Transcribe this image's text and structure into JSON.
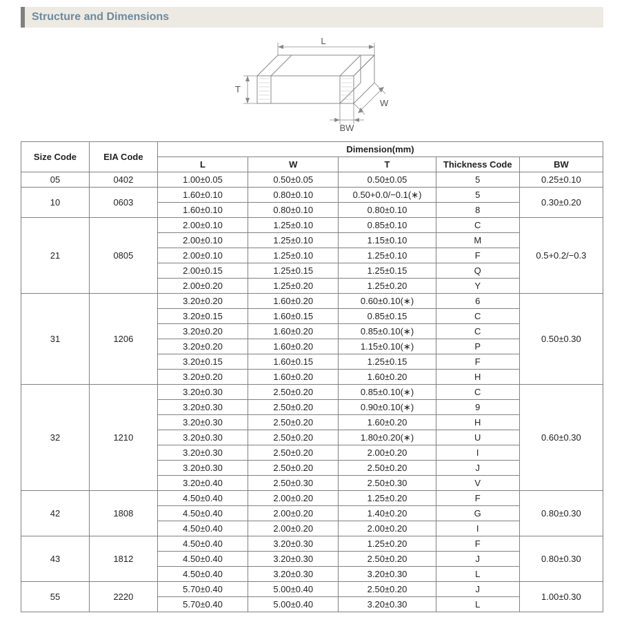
{
  "title": "Structure and Dimensions",
  "diagram": {
    "labels": {
      "L": "L",
      "W": "W",
      "T": "T",
      "BW": "BW"
    },
    "stroke": "#888888",
    "text_color": "#555555"
  },
  "table": {
    "header_top": {
      "size_code": "Size Code",
      "eia_code": "EIA Code",
      "dimension": "Dimension(mm)"
    },
    "header_sub": {
      "L": "L",
      "W": "W",
      "T": "T",
      "thickness": "Thickness  Code",
      "BW": "BW"
    },
    "groups": [
      {
        "size": "05",
        "eia": "0402",
        "bw": "0.25±0.10",
        "rows": [
          {
            "L": "1.00±0.05",
            "W": "0.50±0.05",
            "T": "0.50±0.05",
            "tc": "5"
          }
        ]
      },
      {
        "size": "10",
        "eia": "0603",
        "bw": "0.30±0.20",
        "rows": [
          {
            "L": "1.60±0.10",
            "W": "0.80±0.10",
            "T": "0.50+0.0/−0.1(∗)",
            "tc": "5"
          },
          {
            "L": "1.60±0.10",
            "W": "0.80±0.10",
            "T": "0.80±0.10",
            "tc": "8"
          }
        ]
      },
      {
        "size": "21",
        "eia": "0805",
        "bw": "0.5+0.2/−0.3",
        "rows": [
          {
            "L": "2.00±0.10",
            "W": "1.25±0.10",
            "T": "0.85±0.10",
            "tc": "C"
          },
          {
            "L": "2.00±0.10",
            "W": "1.25±0.10",
            "T": "1.15±0.10",
            "tc": "M"
          },
          {
            "L": "2.00±0.10",
            "W": "1.25±0.10",
            "T": "1.25±0.10",
            "tc": "F"
          },
          {
            "L": "2.00±0.15",
            "W": "1.25±0.15",
            "T": "1.25±0.15",
            "tc": "Q"
          },
          {
            "L": "2.00±0.20",
            "W": "1.25±0.20",
            "T": "1.25±0.20",
            "tc": "Y"
          }
        ]
      },
      {
        "size": "31",
        "eia": "1206",
        "bw": "0.50±0.30",
        "rows": [
          {
            "L": "3.20±0.20",
            "W": "1.60±0.20",
            "T": "0.60±0.10(∗)",
            "tc": "6"
          },
          {
            "L": "3.20±0.15",
            "W": "1.60±0.15",
            "T": "0.85±0.15",
            "tc": "C"
          },
          {
            "L": "3.20±0.20",
            "W": "1.60±0.20",
            "T": "0.85±0.10(∗)",
            "tc": "C"
          },
          {
            "L": "3.20±0.20",
            "W": "1.60±0.20",
            "T": "1.15±0.10(∗)",
            "tc": "P"
          },
          {
            "L": "3.20±0.15",
            "W": "1.60±0.15",
            "T": "1.25±0.15",
            "tc": "F"
          },
          {
            "L": "3.20±0.20",
            "W": "1.60±0.20",
            "T": "1.60±0.20",
            "tc": "H"
          }
        ]
      },
      {
        "size": "32",
        "eia": "1210",
        "bw": "0.60±0.30",
        "rows": [
          {
            "L": "3.20±0.30",
            "W": "2.50±0.20",
            "T": "0.85±0.10(∗)",
            "tc": "C"
          },
          {
            "L": "3.20±0.30",
            "W": "2.50±0.20",
            "T": "0.90±0.10(∗)",
            "tc": "9"
          },
          {
            "L": "3.20±0.30",
            "W": "2.50±0.20",
            "T": "1.60±0.20",
            "tc": "H"
          },
          {
            "L": "3.20±0.30",
            "W": "2.50±0.20",
            "T": "1.80±0.20(∗)",
            "tc": "U"
          },
          {
            "L": "3.20±0.30",
            "W": "2.50±0.20",
            "T": "2.00±0.20",
            "tc": "I"
          },
          {
            "L": "3.20±0.30",
            "W": "2.50±0.20",
            "T": "2.50±0.20",
            "tc": "J"
          },
          {
            "L": "3.20±0.40",
            "W": "2.50±0.30",
            "T": "2.50±0.30",
            "tc": "V"
          }
        ]
      },
      {
        "size": "42",
        "eia": "1808",
        "bw": "0.80±0.30",
        "rows": [
          {
            "L": "4.50±0.40",
            "W": "2.00±0.20",
            "T": "1.25±0.20",
            "tc": "F"
          },
          {
            "L": "4.50±0.40",
            "W": "2.00±0.20",
            "T": "1.40±0.20",
            "tc": "G"
          },
          {
            "L": "4.50±0.40",
            "W": "2.00±0.20",
            "T": "2.00±0.20",
            "tc": "I"
          }
        ]
      },
      {
        "size": "43",
        "eia": "1812",
        "bw": "0.80±0.30",
        "rows": [
          {
            "L": "4.50±0.40",
            "W": "3.20±0.30",
            "T": "1.25±0.20",
            "tc": "F"
          },
          {
            "L": "4.50±0.40",
            "W": "3.20±0.30",
            "T": "2.50±0.20",
            "tc": "J"
          },
          {
            "L": "4.50±0.40",
            "W": "3.20±0.30",
            "T": "3.20±0.30",
            "tc": "L"
          }
        ]
      },
      {
        "size": "55",
        "eia": "2220",
        "bw": "1.00±0.30",
        "rows": [
          {
            "L": "5.70±0.40",
            "W": "5.00±0.40",
            "T": "2.50±0.20",
            "tc": "J"
          },
          {
            "L": "5.70±0.40",
            "W": "5.00±0.40",
            "T": "3.20±0.30",
            "tc": "L"
          }
        ]
      }
    ]
  },
  "colors": {
    "title_bg": "#edeae3",
    "title_border": "#808080",
    "title_text": "#6b8a9e",
    "table_border": "#808080",
    "table_text": "#222222",
    "background": "#ffffff"
  },
  "typography": {
    "title_fontsize": 16,
    "table_fontsize": 13,
    "diagram_fontsize": 13,
    "font_family": "Arial, sans-serif"
  }
}
